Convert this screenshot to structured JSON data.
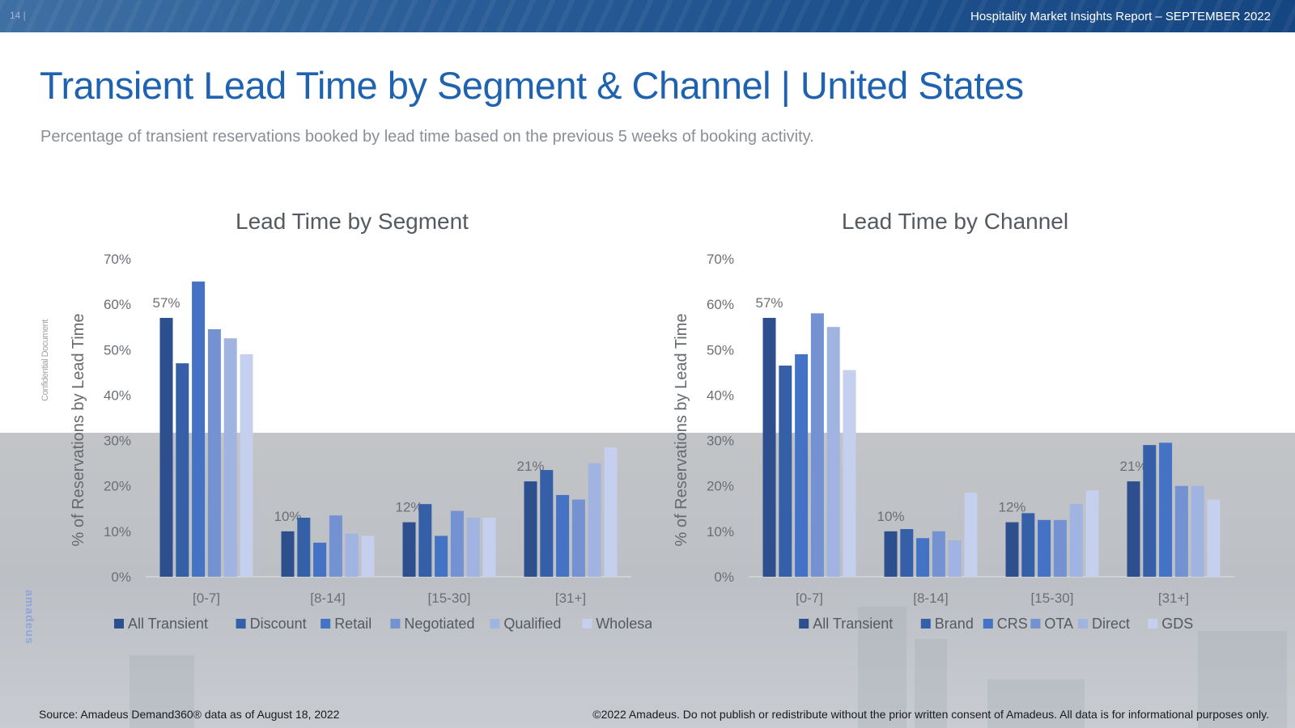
{
  "header": {
    "page_number": "14 |",
    "report_title": "Hospitality Market Insights Report – SEPTEMBER 2022"
  },
  "page_title": "Transient Lead Time by Segment & Channel | United States",
  "subtitle": "Percentage of transient reservations booked by lead time based on the previous 5 weeks of booking activity.",
  "side_label": "Confidential Document",
  "brand_logo": "amadeus",
  "colors": [
    "#2e4f8e",
    "#3560a8",
    "#4472c4",
    "#7491d2",
    "#a1b3e0",
    "#c5cfee"
  ],
  "chart_data": [
    {
      "type": "bar",
      "title": "Lead Time by Segment",
      "ylabel": "% of Reservations by Lead Time",
      "xlabel": "",
      "ylim": [
        0,
        70
      ],
      "yticks": [
        "0%",
        "10%",
        "20%",
        "30%",
        "40%",
        "50%",
        "60%",
        "70%"
      ],
      "categories": [
        "[0-7]",
        "[8-14]",
        "[15-30]",
        "[31+]"
      ],
      "series": [
        {
          "name": "All Transient",
          "values": [
            57,
            10,
            12,
            21
          ],
          "labels": [
            "57%",
            "10%",
            "12%",
            "21%"
          ]
        },
        {
          "name": "Discount",
          "values": [
            47,
            13,
            16,
            23.5
          ]
        },
        {
          "name": "Retail",
          "values": [
            65,
            7.5,
            9,
            18
          ]
        },
        {
          "name": "Negotiated",
          "values": [
            54.5,
            13.5,
            14.5,
            17
          ]
        },
        {
          "name": "Qualified",
          "values": [
            52.5,
            9.5,
            13,
            25
          ]
        },
        {
          "name": "Wholesale",
          "values": [
            49,
            9,
            13,
            28.5
          ]
        }
      ],
      "legend": "bottom"
    },
    {
      "type": "bar",
      "title": "Lead Time by Channel",
      "ylabel": "% of Reservations by Lead Time",
      "xlabel": "",
      "ylim": [
        0,
        70
      ],
      "yticks": [
        "0%",
        "10%",
        "20%",
        "30%",
        "40%",
        "50%",
        "60%",
        "70%"
      ],
      "categories": [
        "[0-7]",
        "[8-14]",
        "[15-30]",
        "[31+]"
      ],
      "series": [
        {
          "name": "All Transient",
          "values": [
            57,
            10,
            12,
            21
          ],
          "labels": [
            "57%",
            "10%",
            "12%",
            "21%"
          ]
        },
        {
          "name": "Brand",
          "values": [
            46.5,
            10.5,
            14,
            29
          ]
        },
        {
          "name": "CRS",
          "values": [
            49,
            8.5,
            12.5,
            29.5
          ]
        },
        {
          "name": "OTA",
          "values": [
            58,
            10,
            12.5,
            20
          ]
        },
        {
          "name": "Direct",
          "values": [
            55,
            8,
            16,
            20
          ]
        },
        {
          "name": "GDS",
          "values": [
            45.5,
            18.5,
            19,
            17
          ]
        }
      ],
      "legend": "bottom"
    }
  ],
  "footer": {
    "source": "Source: Amadeus Demand360® data as of August 18, 2022",
    "copyright": "©2022 Amadeus. Do not publish or redistribute without the prior written consent of Amadeus. All data is for informational purposes only."
  }
}
